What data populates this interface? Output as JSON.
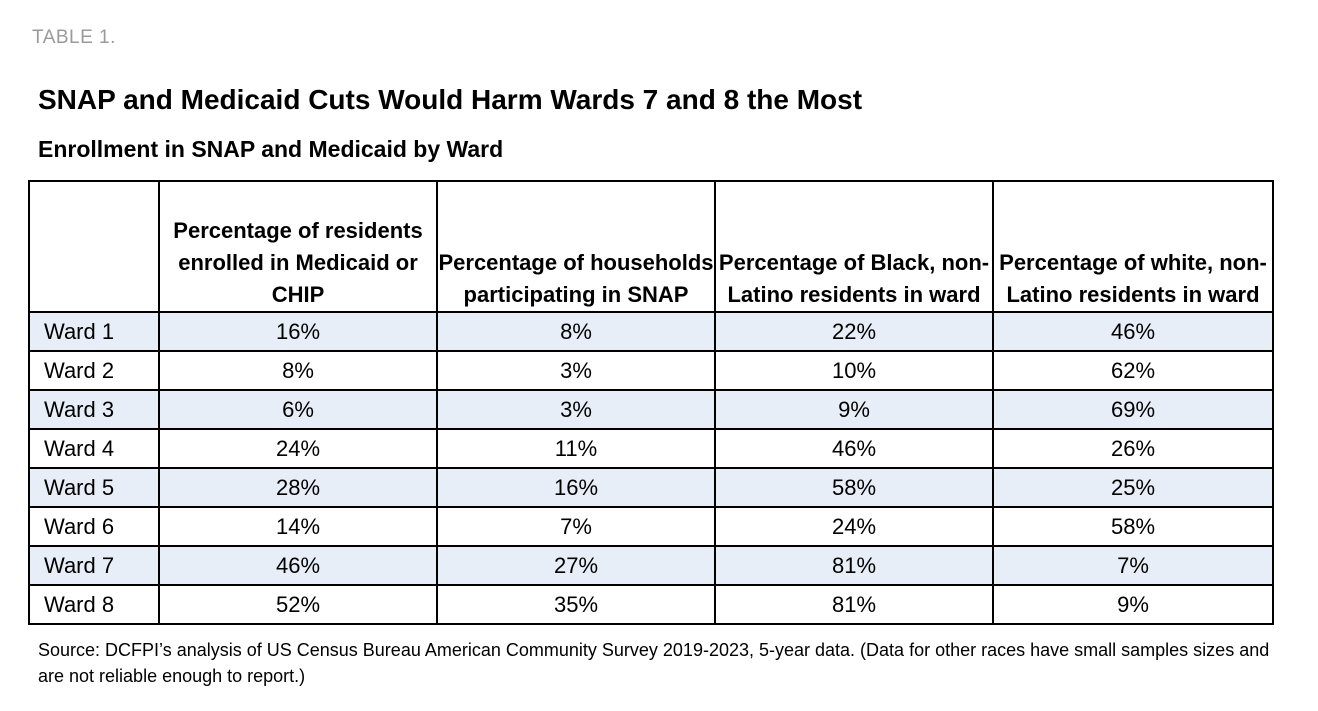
{
  "label": "TABLE 1.",
  "title": "SNAP and Medicaid Cuts Would Harm Wards 7 and 8 the Most",
  "subtitle": "Enrollment in SNAP and Medicaid by Ward",
  "source": "Source: DCFPI’s analysis of US Census Bureau American Community Survey 2019-2023, 5-year data. (Data for other races have small samples sizes and are not reliable enough to report.)",
  "colors": {
    "row_shade": "#e8eef7",
    "border": "#000000",
    "label_gray": "#9a9a9a"
  },
  "chart_data": {
    "type": "table",
    "title": "SNAP and Medicaid Cuts Would Harm Wards 7 and 8 the Most",
    "subtitle": "Enrollment in SNAP and Medicaid by Ward",
    "columns": [
      "",
      "Percentage of residents enrolled in Medicaid or CHIP",
      "Percentage of households participating in SNAP",
      "Percentage of Black, non-Latino residents in ward",
      "Percentage of white, non-Latino residents in ward"
    ],
    "rows": [
      [
        "Ward 1",
        "16%",
        "8%",
        "22%",
        "46%"
      ],
      [
        "Ward 2",
        "8%",
        "3%",
        "10%",
        "62%"
      ],
      [
        "Ward 3",
        "6%",
        "3%",
        "9%",
        "69%"
      ],
      [
        "Ward 4",
        "24%",
        "11%",
        "46%",
        "26%"
      ],
      [
        "Ward 5",
        "28%",
        "16%",
        "58%",
        "25%"
      ],
      [
        "Ward 6",
        "14%",
        "7%",
        "24%",
        "58%"
      ],
      [
        "Ward 7",
        "46%",
        "27%",
        "81%",
        "7%"
      ],
      [
        "Ward 8",
        "52%",
        "35%",
        "81%",
        "9%"
      ]
    ]
  }
}
